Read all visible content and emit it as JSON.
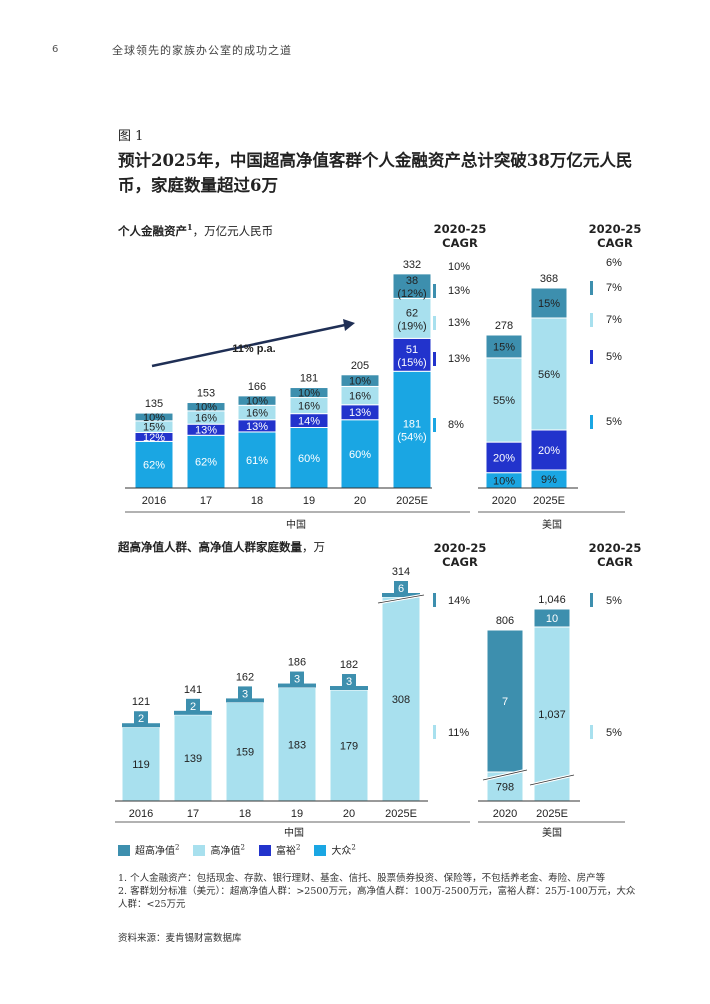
{
  "page": {
    "number": "6",
    "header": "全球领先的家族办公室的成功之道",
    "figure_label": "图 1",
    "title": "预计2025年，中国超高净值客群个人金融资产总计突破38万亿元人民币，家庭数量超过6万"
  },
  "colors": {
    "uhnw": "#3d8fae",
    "hnw": "#a8e0ee",
    "affluent": "#2233cc",
    "mass": "#1aa6e3"
  },
  "chart_data": [
    {
      "type": "bar",
      "id": "china_assets",
      "title": "个人金融资产",
      "title_sup": "1",
      "unit": "，万亿元人民币",
      "cagr_header": "2020-25\nCAGR",
      "country_label": "中国",
      "trend_label": "11% p.a.",
      "categories": [
        "2016",
        "17",
        "18",
        "19",
        "20",
        "2025E"
      ],
      "totals": [
        "135",
        "153",
        "166",
        "181",
        "205",
        "332"
      ],
      "series": [
        {
          "key": "mass",
          "labels": [
            "62%",
            "62%",
            "61%",
            "60%",
            "60%",
            "181\n(54%)"
          ],
          "values": [
            84,
            95,
            101,
            109,
            123,
            181
          ]
        },
        {
          "key": "affluent",
          "labels": [
            "12%",
            "13%",
            "13%",
            "14%",
            "13%",
            "51\n(15%)"
          ],
          "values": [
            16,
            20,
            22,
            25,
            27,
            51
          ]
        },
        {
          "key": "hnw",
          "labels": [
            "15%",
            "16%",
            "16%",
            "16%",
            "16%",
            "62\n(19%)"
          ],
          "values": [
            21,
            24,
            26,
            29,
            33,
            62
          ]
        },
        {
          "key": "uhnw",
          "labels": [
            "10%",
            "10%",
            "10%",
            "10%",
            "10%",
            "38\n(12%)"
          ],
          "values": [
            14,
            15,
            17,
            18,
            21,
            38
          ]
        }
      ],
      "cagr": {
        "total": "10%",
        "uhnw": "13%",
        "hnw": "13%",
        "affluent": "13%",
        "mass": "8%"
      }
    },
    {
      "type": "bar",
      "id": "us_assets",
      "cagr_header": "2020-25\nCAGR",
      "country_label": "美国",
      "categories": [
        "2020",
        "2025E"
      ],
      "totals": [
        "278",
        "368"
      ],
      "series": [
        {
          "key": "mass",
          "labels": [
            "10%",
            "9%"
          ],
          "values": [
            10,
            9
          ]
        },
        {
          "key": "affluent",
          "labels": [
            "20%",
            "20%"
          ],
          "values": [
            20,
            20
          ]
        },
        {
          "key": "hnw",
          "labels": [
            "55%",
            "56%"
          ],
          "values": [
            55,
            56
          ]
        },
        {
          "key": "uhnw",
          "labels": [
            "15%",
            "15%"
          ],
          "values": [
            15,
            15
          ]
        }
      ],
      "cagr": {
        "total": "6%",
        "uhnw": "7%",
        "hnw": "7%",
        "affluent": "5%",
        "mass": "5%"
      }
    },
    {
      "type": "bar",
      "id": "china_households",
      "title": "超高净值人群、高净值人群家庭数量",
      "unit": "，万",
      "cagr_header": "2020-25\nCAGR",
      "country_label": "中国",
      "categories": [
        "2016",
        "17",
        "18",
        "19",
        "20",
        "2025E"
      ],
      "totals": [
        "121",
        "141",
        "162",
        "186",
        "182",
        "314"
      ],
      "series": [
        {
          "key": "hnw",
          "labels": [
            "119",
            "139",
            "159",
            "183",
            "179",
            "308"
          ],
          "values": [
            119,
            139,
            159,
            183,
            179,
            308
          ]
        },
        {
          "key": "uhnw",
          "labels": [
            "2",
            "2",
            "3",
            "3",
            "3",
            "6"
          ],
          "values": [
            2,
            2,
            3,
            3,
            3,
            6
          ]
        }
      ],
      "cagr": {
        "uhnw": "14%",
        "hnw": "11%"
      }
    },
    {
      "type": "bar",
      "id": "us_households",
      "cagr_header": "2020-25\nCAGR",
      "country_label": "美国",
      "categories": [
        "2020",
        "2025E"
      ],
      "totals": [
        "806",
        "1,046"
      ],
      "series": [
        {
          "key": "hnw",
          "labels": [
            "798",
            "1,037"
          ],
          "values": [
            798,
            1037
          ]
        },
        {
          "key": "uhnw",
          "labels": [
            "7",
            "10"
          ],
          "values": [
            7,
            10
          ]
        }
      ],
      "cagr": {
        "uhnw": "5%",
        "hnw": "5%"
      }
    }
  ],
  "legend": [
    {
      "key": "uhnw",
      "label": "超高净值",
      "sup": "2"
    },
    {
      "key": "hnw",
      "label": "高净值",
      "sup": "2"
    },
    {
      "key": "affluent",
      "label": "富裕",
      "sup": "2"
    },
    {
      "key": "mass",
      "label": "大众",
      "sup": "2"
    }
  ],
  "notes": [
    "1.  个人金融资产：包括现金、存款、银行理财、基金、信托、股票债券投资、保险等，不包括养老金、寿险、房产等",
    "2.  客群划分标准（美元）：超高净值人群：>2500万元，高净值人群：100万-2500万元，富裕人群：25万-100万元，大众人群：<25万元"
  ],
  "source": "资料来源：麦肯锡财富数据库"
}
